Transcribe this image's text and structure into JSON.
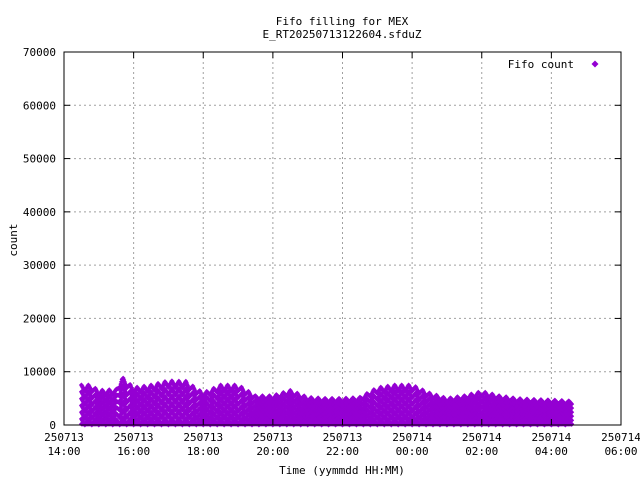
{
  "chart_data": {
    "type": "scatter",
    "title_line1": "Fifo filling for MEX",
    "title_line2": "E_RT20250713122604.sfduZ",
    "xlabel": "Time (yymmdd HH:MM)",
    "ylabel": "count",
    "legend_position": "top-right",
    "grid": true,
    "colors": {
      "series": "#9400d3",
      "grid": "#a0a0a0",
      "axis": "#000000"
    },
    "xlim": [
      "250713 14:00",
      "250714 06:00"
    ],
    "ylim": [
      0,
      70000
    ],
    "x_ticks": [
      {
        "date": "250713",
        "time": "14:00"
      },
      {
        "date": "250713",
        "time": "16:00"
      },
      {
        "date": "250713",
        "time": "18:00"
      },
      {
        "date": "250713",
        "time": "20:00"
      },
      {
        "date": "250713",
        "time": "22:00"
      },
      {
        "date": "250714",
        "time": "00:00"
      },
      {
        "date": "250714",
        "time": "02:00"
      },
      {
        "date": "250714",
        "time": "04:00"
      },
      {
        "date": "250714",
        "time": "06:00"
      }
    ],
    "y_ticks": [
      "0",
      "10000",
      "20000",
      "30000",
      "40000",
      "50000",
      "60000",
      "70000"
    ],
    "y_tick_values": [
      0,
      10000,
      20000,
      30000,
      40000,
      50000,
      60000,
      70000
    ],
    "series": [
      {
        "name": "Fifo count",
        "data_start": "250713 14:30",
        "data_end": "250714 04:35",
        "x": [
          "250713 14:30",
          "250713 14:45",
          "250713 15:00",
          "250713 15:30",
          "250713 15:40",
          "250713 16:00",
          "250713 16:30",
          "250713 17:00",
          "250713 17:30",
          "250713 18:00",
          "250713 18:30",
          "250713 19:00",
          "250713 19:30",
          "250713 20:00",
          "250713 20:30",
          "250713 21:00",
          "250713 21:30",
          "250713 22:00",
          "250713 22:30",
          "250713 23:00",
          "250713 23:30",
          "250714 00:00",
          "250714 00:30",
          "250714 01:00",
          "250714 01:30",
          "250714 02:00",
          "250714 02:30",
          "250714 03:00",
          "250714 03:30",
          "250714 04:00",
          "250714 04:35"
        ],
        "y": [
          7500,
          7500,
          6500,
          6700,
          9000,
          7000,
          7500,
          8300,
          8200,
          6000,
          7500,
          7500,
          5500,
          5500,
          6500,
          5200,
          5000,
          5000,
          5200,
          7000,
          7500,
          7500,
          6000,
          5000,
          5500,
          6300,
          5500,
          5000,
          4800,
          4700,
          4500
        ]
      }
    ]
  }
}
